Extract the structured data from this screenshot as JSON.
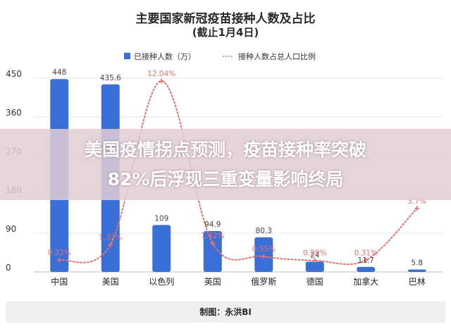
{
  "chart_data": {
    "type": "bar",
    "title": "主要国家新冠疫苗接种人数及占比",
    "subtitle": "(截止1月4日)",
    "categories": [
      "中国",
      "美国",
      "以色列",
      "英国",
      "俄罗斯",
      "德国",
      "加拿大",
      "巴林"
    ],
    "ylim": [
      0,
      450
    ],
    "yticks": [
      0,
      90,
      180,
      270,
      360,
      450
    ],
    "grid": true,
    "legend_position": "top",
    "series": [
      {
        "name": "已接种人数（万）",
        "type": "bar",
        "color": "#3a6fd8",
        "values": [
          448,
          435.6,
          109,
          94.9,
          80.3,
          24,
          11.7,
          5.8
        ],
        "labels": [
          "448",
          "435.6",
          "109",
          "94.9",
          "80.3",
          "24",
          "11.7",
          "5.8"
        ]
      },
      {
        "name": "接种人数占总人口比例",
        "type": "line",
        "style": "dotted-smooth",
        "color": "#e8706f",
        "values": [
          0.32,
          1.32,
          12.04,
          1.42,
          0.55,
          0.29,
          0.31,
          3.7
        ],
        "labels": [
          "0.32%",
          "1.32%",
          "12.04%",
          "1.42%",
          "0.55%",
          "0.29%",
          "0.31%",
          "3.7%"
        ]
      }
    ]
  },
  "overlay": {
    "line1": "美国疫情拐点预测，疫苗接种率突破",
    "line2": "82%后浮现三重变量影响终局"
  },
  "footer": {
    "credit": "制图：永洪BI"
  }
}
